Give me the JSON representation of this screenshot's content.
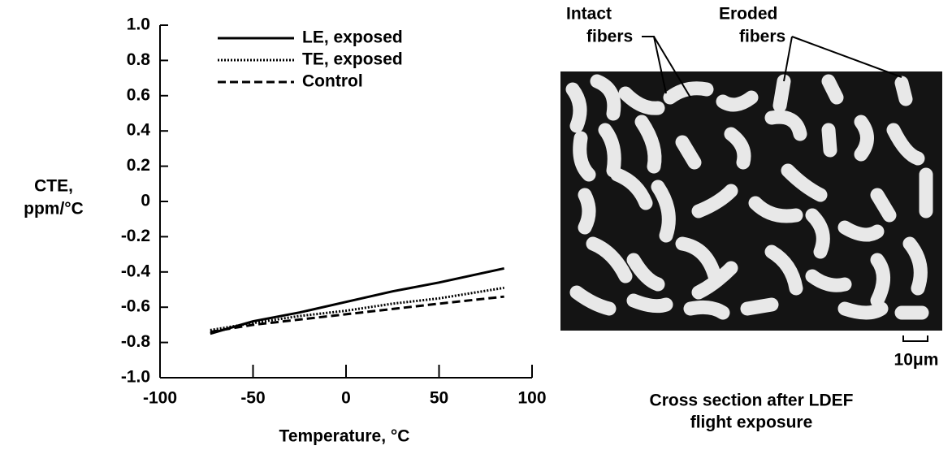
{
  "chart_data": {
    "type": "line",
    "ylabel": [
      "CTE,",
      "ppm/°C"
    ],
    "xlabel": "Temperature, °C",
    "x": [
      -73,
      -50,
      -25,
      0,
      25,
      50,
      85
    ],
    "series": [
      {
        "name": "LE, exposed",
        "color": "#000000",
        "dash": "solid",
        "values": [
          -0.75,
          -0.68,
          -0.63,
          -0.57,
          -0.51,
          -0.46,
          -0.38
        ]
      },
      {
        "name": "TE, exposed",
        "color": "#000000",
        "dash": "dotted",
        "values": [
          -0.73,
          -0.69,
          -0.65,
          -0.62,
          -0.58,
          -0.55,
          -0.49
        ]
      },
      {
        "name": "Control",
        "color": "#000000",
        "dash": "dashed",
        "values": [
          -0.74,
          -0.7,
          -0.67,
          -0.64,
          -0.61,
          -0.58,
          -0.54
        ]
      }
    ],
    "xlim": [
      -100,
      100
    ],
    "xticks": [
      -100,
      -50,
      0,
      50,
      100
    ],
    "ylim": [
      -1,
      1
    ],
    "yticks": [
      {
        "value": -1,
        "label": "-1.0"
      },
      -0.8,
      -0.6,
      -0.4,
      -0.2,
      0,
      0.2,
      0.4,
      0.6,
      0.8,
      {
        "value": 1,
        "label": "1.0"
      }
    ],
    "legend": "upper-left",
    "grid": false
  },
  "image": {
    "labels": {
      "intact": [
        "Intact",
        "fibers"
      ],
      "eroded": [
        "Eroded",
        "fibers"
      ],
      "scale": "10μm"
    },
    "caption": [
      "Cross section after LDEF",
      "flight exposure"
    ]
  }
}
